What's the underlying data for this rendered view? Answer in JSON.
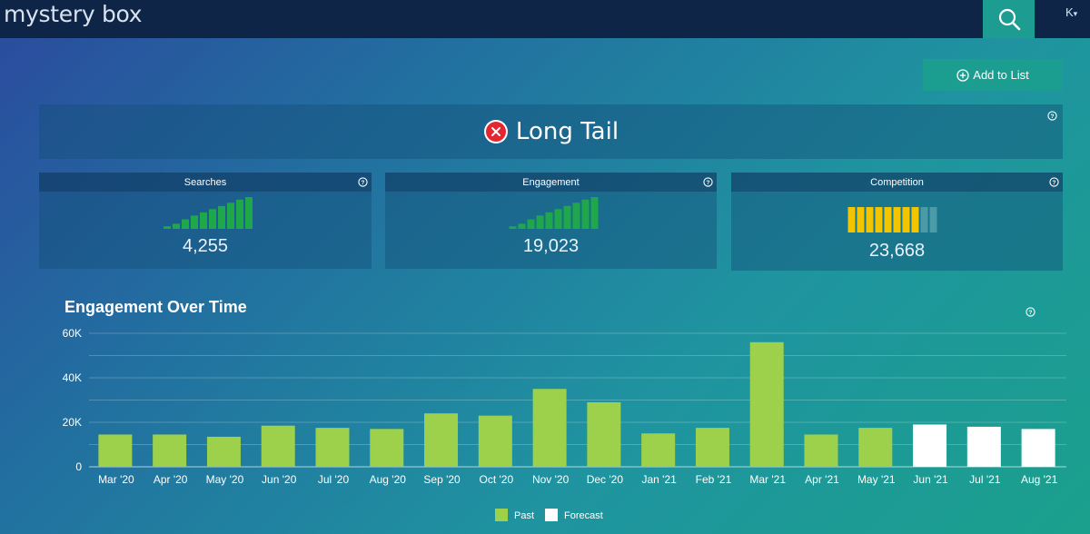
{
  "app": {
    "brand": "mystery box",
    "user_initial": "K",
    "user_caret": "▾"
  },
  "actions": {
    "add_to_list": "Add to List"
  },
  "result": {
    "label": "Long Tail",
    "status_color": "#e3262f"
  },
  "metrics": [
    {
      "title": "Searches",
      "value": "4,255",
      "bar_color": "#1fa84a",
      "bar_heights": [
        0.08,
        0.16,
        0.3,
        0.42,
        0.52,
        0.62,
        0.72,
        0.82,
        0.92,
        1.0
      ]
    },
    {
      "title": "Engagement",
      "value": "19,023",
      "bar_color": "#1fa84a",
      "bar_heights": [
        0.08,
        0.16,
        0.3,
        0.42,
        0.52,
        0.62,
        0.72,
        0.82,
        0.92,
        1.0
      ]
    },
    {
      "title": "Competition",
      "value": "23,668",
      "level_filled": 8,
      "level_total": 10,
      "filled_color": "#f2c500",
      "empty_color": "#4a9aa8"
    }
  ],
  "chart_data": {
    "type": "bar",
    "title": "Engagement Over Time",
    "categories": [
      "Mar '20",
      "Apr '20",
      "May '20",
      "Jun '20",
      "Jul '20",
      "Aug '20",
      "Sep '20",
      "Oct '20",
      "Nov '20",
      "Dec '20",
      "Jan '21",
      "Feb '21",
      "Mar '21",
      "Apr '21",
      "May '21",
      "Jun '21",
      "Jul '21",
      "Aug '21"
    ],
    "values": [
      14500,
      14500,
      13500,
      18500,
      17500,
      17000,
      24000,
      23000,
      35000,
      29000,
      15000,
      17500,
      56000,
      14500,
      17500,
      19000,
      18000,
      17000
    ],
    "kinds": [
      "Past",
      "Past",
      "Past",
      "Past",
      "Past",
      "Past",
      "Past",
      "Past",
      "Past",
      "Past",
      "Past",
      "Past",
      "Past",
      "Past",
      "Past",
      "Forecast",
      "Forecast",
      "Forecast"
    ],
    "ylim": [
      0,
      60000
    ],
    "yticks": [
      0,
      20000,
      40000,
      60000
    ],
    "ytick_labels": [
      "0",
      "20K",
      "40K",
      "60K"
    ],
    "grid": true,
    "legend": [
      {
        "name": "Past",
        "color": "#9ed14b"
      },
      {
        "name": "Forecast",
        "color": "#ffffff"
      }
    ],
    "legend_position": "bottom-center"
  }
}
